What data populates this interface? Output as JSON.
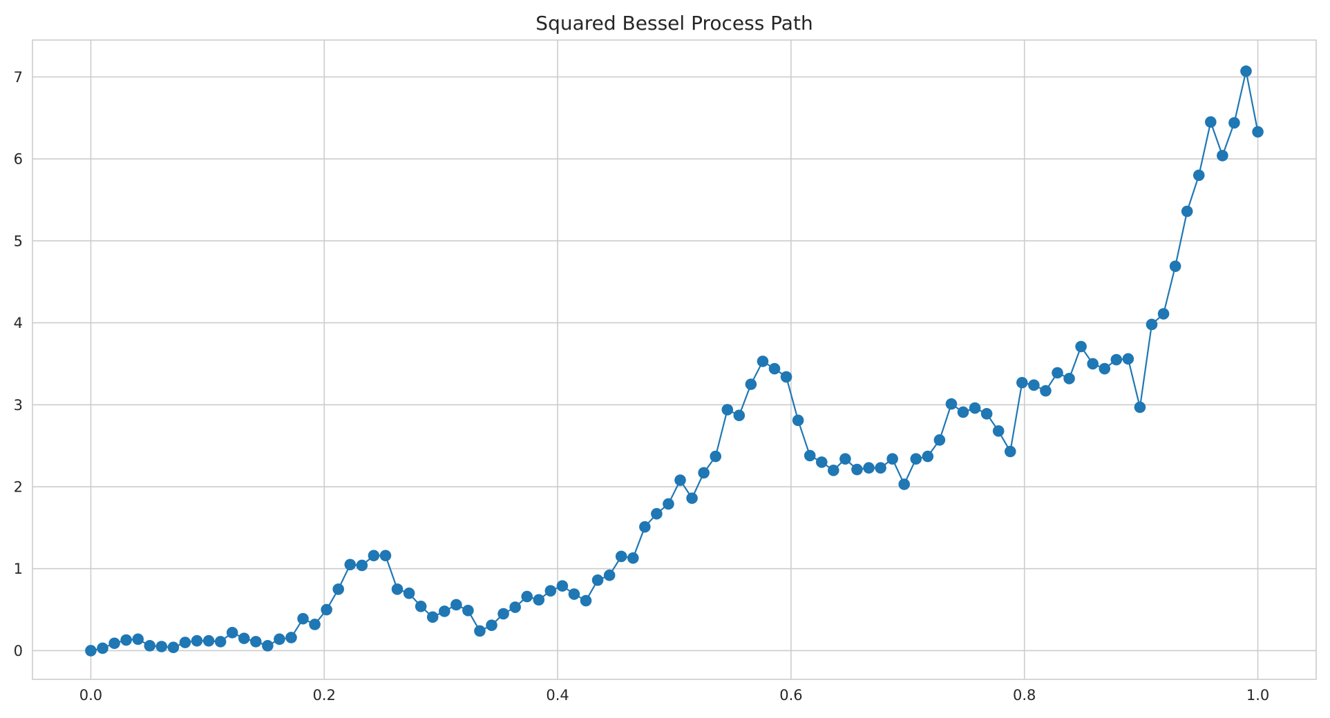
{
  "chart_data": {
    "type": "line",
    "title": "Squared Bessel Process Path",
    "xlabel": "",
    "ylabel": "",
    "xlim": [
      -0.05,
      1.05
    ],
    "ylim": [
      -0.35,
      7.45
    ],
    "x_ticks": [
      0.0,
      0.2,
      0.4,
      0.6,
      0.8,
      1.0
    ],
    "x_tick_labels": [
      "0.0",
      "0.2",
      "0.4",
      "0.6",
      "0.8",
      "1.0"
    ],
    "y_ticks": [
      0,
      1,
      2,
      3,
      4,
      5,
      6,
      7
    ],
    "y_tick_labels": [
      "0",
      "1",
      "2",
      "3",
      "4",
      "5",
      "6",
      "7"
    ],
    "grid": true,
    "legend": false,
    "color": "#1f77b4",
    "marker": "circle",
    "series": [
      {
        "x_start": 0.0,
        "x_end": 1.0,
        "values": [
          0.0,
          0.03,
          0.09,
          0.13,
          0.14,
          0.06,
          0.05,
          0.04,
          0.1,
          0.12,
          0.12,
          0.11,
          0.22,
          0.15,
          0.11,
          0.06,
          0.14,
          0.16,
          0.39,
          0.32,
          0.5,
          0.75,
          1.05,
          1.04,
          1.16,
          1.16,
          0.75,
          0.7,
          0.54,
          0.41,
          0.48,
          0.56,
          0.49,
          0.24,
          0.31,
          0.45,
          0.53,
          0.66,
          0.62,
          0.73,
          0.79,
          0.69,
          0.61,
          0.86,
          0.92,
          1.15,
          1.13,
          1.51,
          1.67,
          1.79,
          2.08,
          1.86,
          2.17,
          2.37,
          2.94,
          2.87,
          3.25,
          3.53,
          3.44,
          3.34,
          2.81,
          2.38,
          2.3,
          2.2,
          2.34,
          2.21,
          2.23,
          2.23,
          2.34,
          2.03,
          2.34,
          2.37,
          2.57,
          3.01,
          2.91,
          2.96,
          2.89,
          2.68,
          2.43,
          3.27,
          3.24,
          3.17,
          3.39,
          3.32,
          3.71,
          3.5,
          3.44,
          3.55,
          3.56,
          2.97,
          3.98,
          4.11,
          4.69,
          5.36,
          5.8,
          6.45,
          6.04,
          6.44,
          7.07,
          6.33
        ]
      }
    ]
  }
}
